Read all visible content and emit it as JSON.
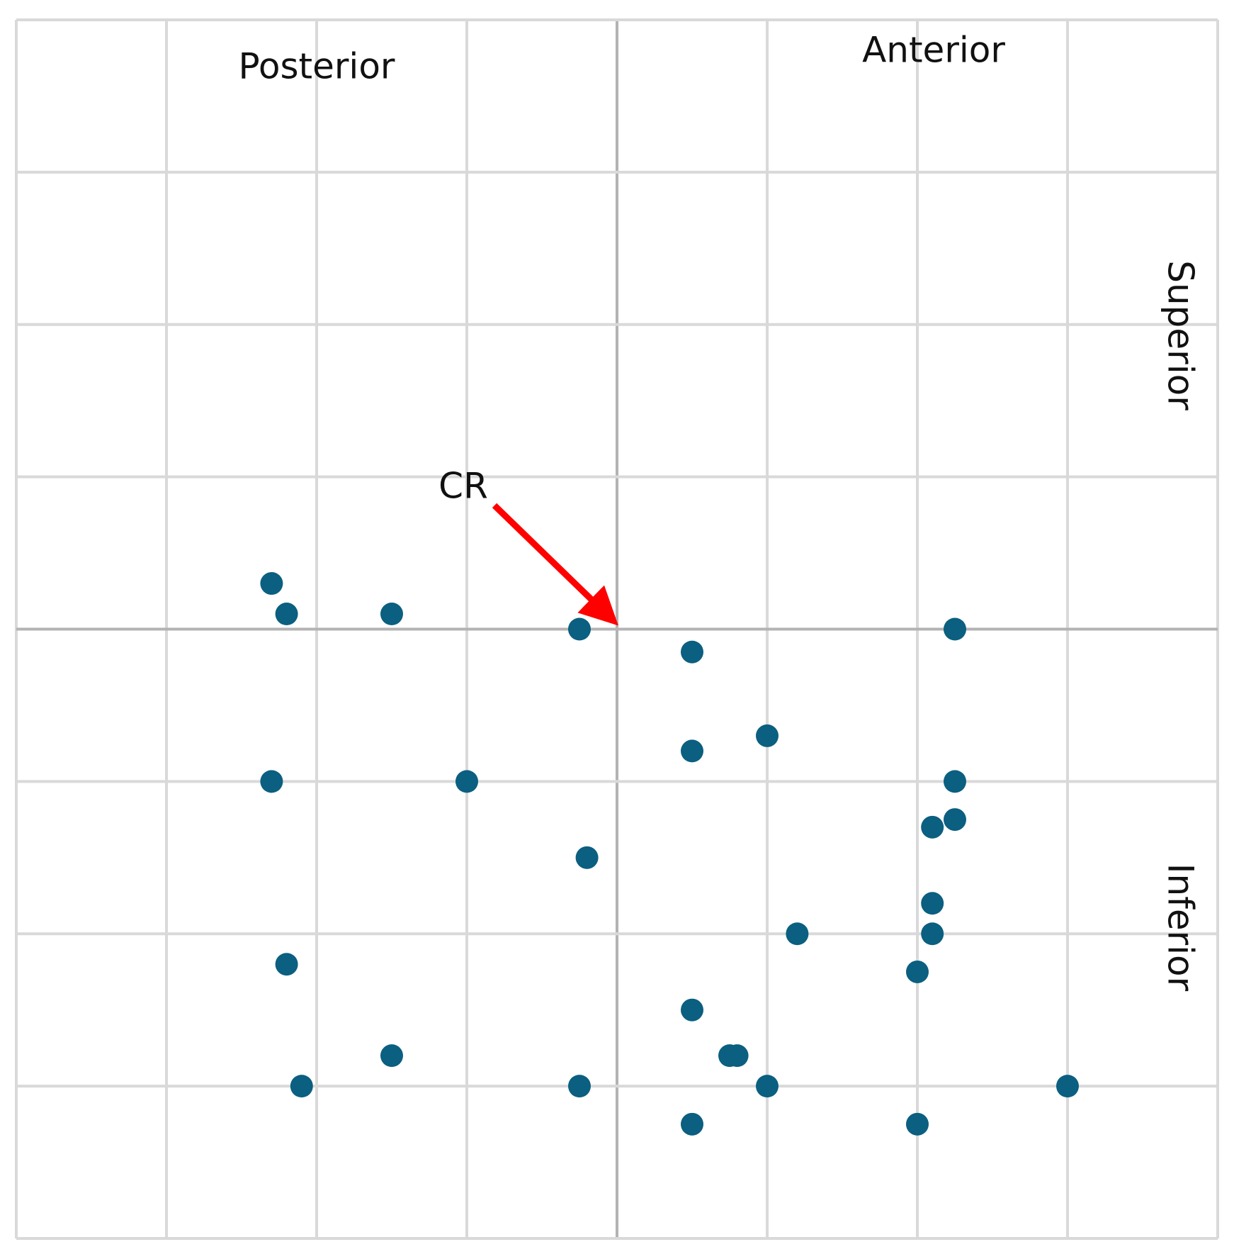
{
  "chart_data": {
    "type": "scatter",
    "labels": {
      "posterior": "Posterior",
      "anterior": "Anterior",
      "superior": "Superior",
      "inferior": "Inferior"
    },
    "annotation": "CR",
    "color": "#0b5f80",
    "grid": true,
    "xlim": [
      -4,
      4
    ],
    "ylim": [
      -4,
      4
    ],
    "xticks": [
      -4,
      -3,
      -2,
      -1,
      0,
      1,
      2,
      3,
      4
    ],
    "yticks": [
      -4,
      -3,
      -2,
      -1,
      0,
      1,
      2,
      3,
      4
    ],
    "x": [
      -2.3,
      -2.2,
      -1.5,
      -0.25,
      0.5,
      2.25,
      1.0,
      0.5,
      -2.3,
      -1.0,
      2.25,
      2.25,
      2.1,
      -0.2,
      2.1,
      1.2,
      2.1,
      -2.2,
      2.0,
      0.5,
      -1.5,
      0.75,
      0.8,
      -2.1,
      -0.25,
      1.0,
      3.0,
      0.5,
      2.0
    ],
    "y": [
      0.3,
      0.1,
      0.1,
      0,
      -0.15,
      0,
      -0.7,
      -0.8,
      -1.0,
      -1.0,
      -1.0,
      -1.25,
      -1.3,
      -1.5,
      -1.8,
      -2.0,
      -2.0,
      -2.2,
      -2.25,
      -2.5,
      -2.8,
      -2.8,
      -2.8,
      -3.0,
      -3.0,
      -3.0,
      -3.0,
      -3.25,
      -3.25
    ]
  }
}
